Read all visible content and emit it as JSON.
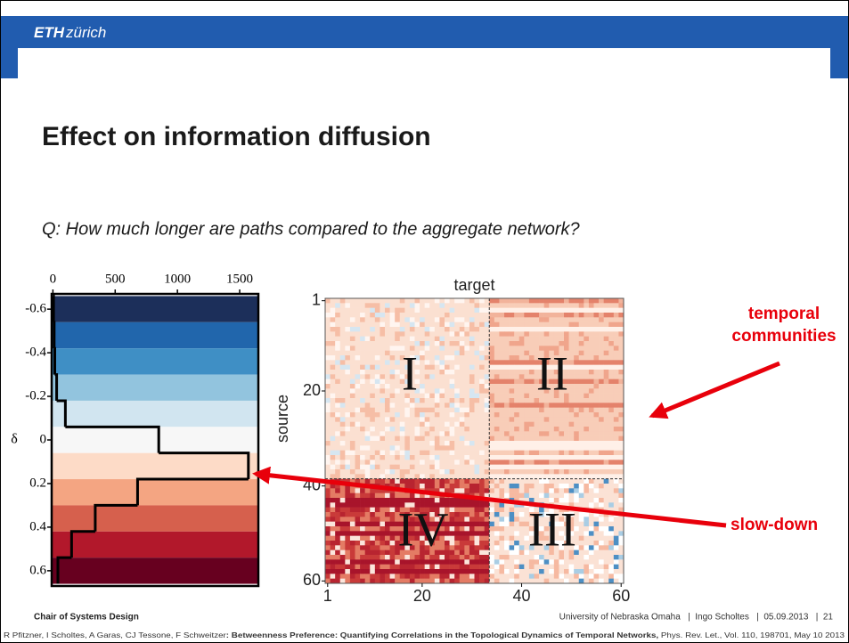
{
  "header": {
    "logo_bold": "ETH",
    "logo_rest": "zürich"
  },
  "title": "Effect on information diffusion",
  "question": "Q: How much longer are paths compared to the aggregate network?",
  "chart_data": {
    "type": "histogram",
    "orientation": "horizontal",
    "y_inverted": true,
    "ylabel": "δ",
    "bins": [
      -0.66,
      -0.54,
      -0.42,
      -0.3,
      -0.18,
      -0.06,
      0.06,
      0.18,
      0.3,
      0.42,
      0.54,
      0.66
    ],
    "values": [
      5,
      10,
      15,
      30,
      100,
      850,
      1570,
      680,
      340,
      150,
      40
    ],
    "colors": [
      "#1c2f5a",
      "#2166ac",
      "#3f8fc5",
      "#92c4de",
      "#d1e5f0",
      "#f7f7f7",
      "#fddbc7",
      "#f4a582",
      "#d6604d",
      "#b2182b",
      "#67001f"
    ],
    "xlim": [
      -10,
      1650
    ],
    "xticks": [
      0,
      500,
      1000,
      1500
    ],
    "ylim": [
      -0.67,
      0.67
    ],
    "yticks": [
      -0.6,
      -0.4,
      -0.2,
      0,
      0.2,
      0.4,
      0.6
    ]
  },
  "heatmap": {
    "xlabel": "target",
    "ylabel": "source",
    "xlim": [
      1,
      60
    ],
    "ylim": [
      1,
      60
    ],
    "xticks": [
      1,
      20,
      40,
      60
    ],
    "yticks": [
      1,
      20,
      40,
      60
    ],
    "quadrant_labels": [
      "I",
      "II",
      "III",
      "IV"
    ]
  },
  "annotations": {
    "communities": [
      "temporal",
      "communities"
    ],
    "slowdown": "slow-down"
  },
  "footer": {
    "left": "Chair of Systems Design",
    "right": "University of Nebraska Omaha   |  Ingo Scholtes   |  05.09.2013   |  21"
  },
  "citation": {
    "authors": "R Pfitzner, I Scholtes, A Garas, CJ Tessone, F Schweitzer",
    "paper": ": Betweenness Preference: Quantifying Correlations in the Topological Dynamics of Temporal Networks,",
    "journal": " Phys. Rev. Let., Vol. 110, 198701, May 10 2013"
  }
}
